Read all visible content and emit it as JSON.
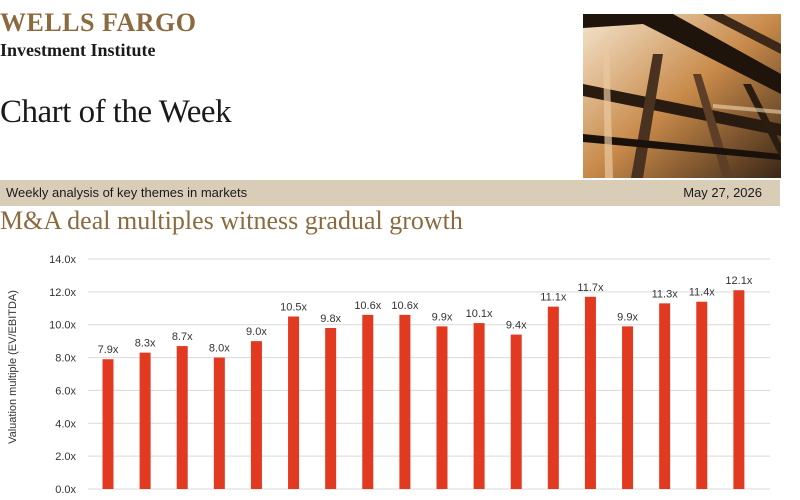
{
  "header": {
    "brand": "WELLS FARGO",
    "brand_sub": "Investment Institute",
    "title": "Chart of the Week"
  },
  "band": {
    "left": "Weekly analysis of key themes in markets",
    "date": "May 27, 2026"
  },
  "colors": {
    "brand_gold": "#8a6a3e",
    "band": "#d9cdb8",
    "bar": "#e13a20"
  },
  "chart_data": {
    "type": "bar",
    "title": "M&A deal multiples witness gradual growth",
    "ylabel": "Valuation multiple (EV/EBITDA)",
    "ylim": [
      0,
      14
    ],
    "yticks": [
      "0.0x",
      "2.0x",
      "4.0x",
      "6.0x",
      "8.0x",
      "10.0x",
      "12.0x",
      "14.0x"
    ],
    "grid": true,
    "values": [
      7.9,
      8.3,
      8.7,
      8.0,
      9.0,
      10.5,
      9.8,
      10.6,
      10.6,
      9.9,
      10.1,
      9.4,
      11.1,
      11.7,
      9.9,
      11.3,
      11.4,
      12.1
    ],
    "labels": [
      "7.9x",
      "8.3x",
      "8.7x",
      "8.0x",
      "9.0x",
      "10.5x",
      "9.8x",
      "10.6x",
      "10.6x",
      "9.9x",
      "10.1x",
      "9.4x",
      "11.1x",
      "11.7x",
      "9.9x",
      "11.3x",
      "11.4x",
      "12.1x"
    ]
  }
}
